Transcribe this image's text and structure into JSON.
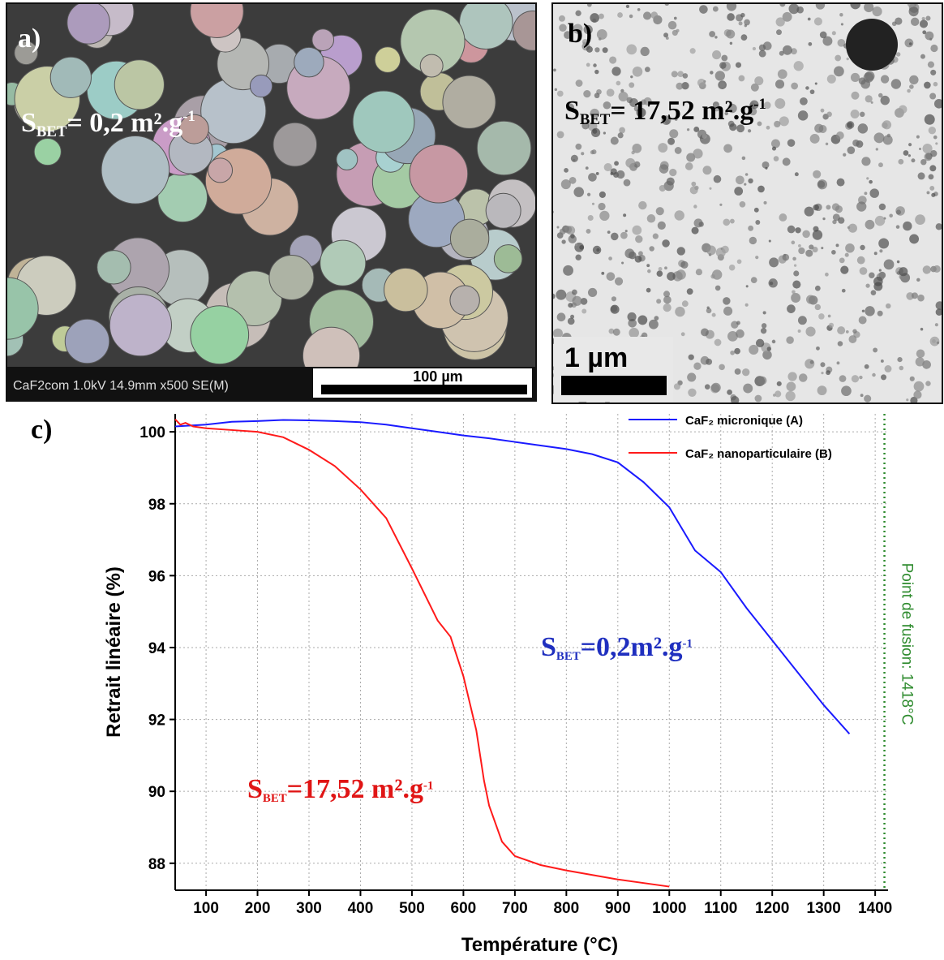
{
  "panel_a": {
    "label": "a)",
    "bet": {
      "s": "S",
      "sub": "BET",
      "main": "= 0,2 m².g",
      "sup": "-1"
    },
    "info": "CaF2com 1.0kV 14.9mm x500 SE(M)",
    "scale": "100 µm"
  },
  "panel_b": {
    "label": "b)",
    "bet": {
      "s": "S",
      "sub": "BET",
      "main": "= 17,52 m².g",
      "sup": "-1"
    },
    "scale": "1 µm"
  },
  "chart_data": {
    "type": "line",
    "panel_label": "c)",
    "xlabel": "Température (°C)",
    "ylabel": "Retrait linéaire (%)",
    "xlim": [
      40,
      1425
    ],
    "ylim": [
      87.25,
      100.5
    ],
    "xticks": [
      100,
      200,
      300,
      400,
      500,
      600,
      700,
      800,
      900,
      1000,
      1100,
      1200,
      1300,
      1400
    ],
    "yticks": [
      88,
      90,
      92,
      94,
      96,
      98,
      100
    ],
    "grid": true,
    "legend": "upper right",
    "series": [
      {
        "name": "CaF₂ micronique (A)",
        "color": "#1a1aff",
        "x": [
          40,
          100,
          150,
          200,
          250,
          300,
          350,
          400,
          450,
          500,
          550,
          600,
          650,
          700,
          750,
          800,
          850,
          900,
          950,
          1000,
          1050,
          1100,
          1150,
          1200,
          1250,
          1300,
          1350
        ],
        "values": [
          100.15,
          100.2,
          100.28,
          100.3,
          100.33,
          100.32,
          100.3,
          100.27,
          100.2,
          100.1,
          100.0,
          99.9,
          99.82,
          99.72,
          99.62,
          99.52,
          99.38,
          99.15,
          98.6,
          97.9,
          96.7,
          96.1,
          95.1,
          94.2,
          93.3,
          92.4,
          91.6
        ]
      },
      {
        "name": "CaF₂ nanoparticulaire (B)",
        "color": "#ff1a1a",
        "x": [
          40,
          50,
          60,
          75,
          100,
          150,
          200,
          250,
          300,
          350,
          400,
          450,
          500,
          550,
          575,
          600,
          625,
          640,
          650,
          675,
          700,
          750,
          800,
          900,
          1000
        ],
        "values": [
          100.35,
          100.2,
          100.25,
          100.15,
          100.1,
          100.05,
          100.0,
          99.85,
          99.5,
          99.05,
          98.4,
          97.6,
          96.2,
          94.75,
          94.3,
          93.2,
          91.7,
          90.3,
          89.6,
          88.6,
          88.2,
          87.95,
          87.8,
          87.55,
          87.35
        ]
      }
    ],
    "annotations": [
      {
        "text": {
          "s": "S",
          "sub": "BET",
          "main": "=0,2m².g",
          "sup": "-1"
        },
        "color": "#1f2fbf"
      },
      {
        "text": {
          "s": "S",
          "sub": "BET",
          "main": "=17,52 m².g",
          "sup": "-1"
        },
        "color": "#e01515"
      }
    ],
    "reference_line": {
      "x": 1418,
      "label": "Point de fusion: 1418°C",
      "color": "#2e8b2e"
    }
  }
}
